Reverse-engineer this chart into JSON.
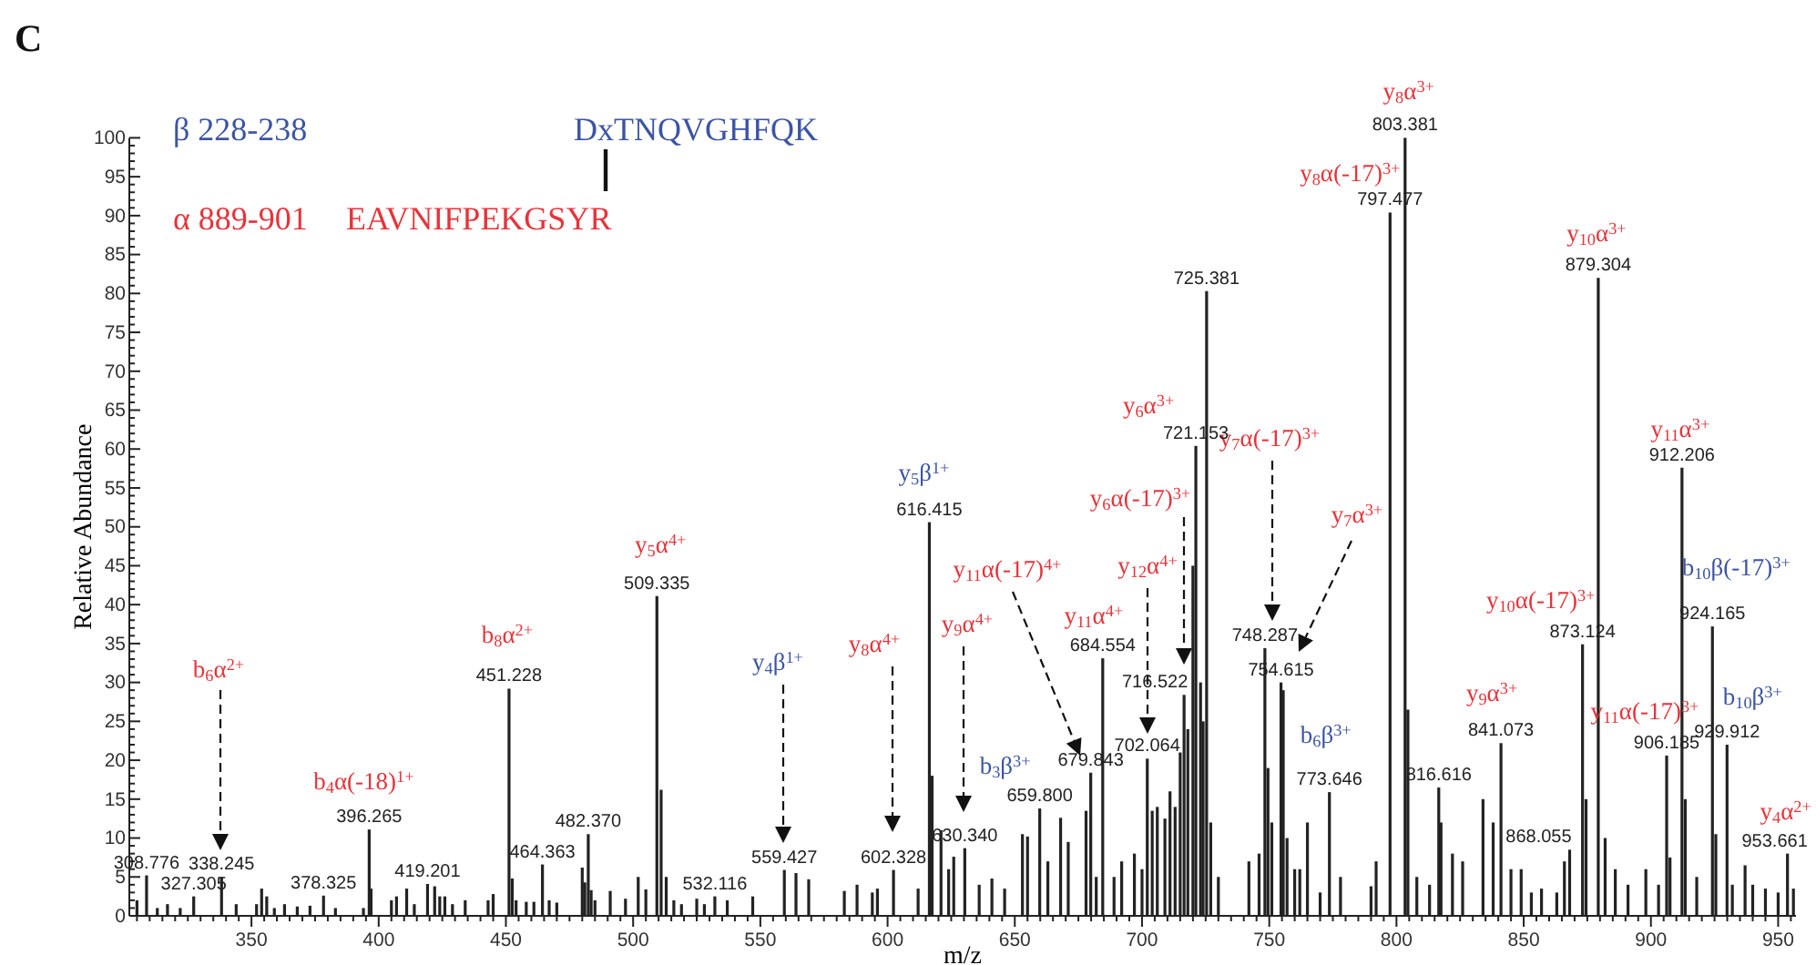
{
  "chart_data": {
    "type": "bar",
    "xlabel": "m/z",
    "ylabel": "Relative Abundance",
    "color": "#222222",
    "xlim": [
      302,
      957
    ],
    "ylim": [
      0,
      100
    ],
    "xticks": [
      {
        "value": 305,
        "label": null
      },
      {
        "value": 310,
        "label": null
      },
      {
        "value": 315,
        "label": null
      },
      {
        "value": 320,
        "label": null
      },
      {
        "value": 325,
        "label": null
      },
      {
        "value": 330,
        "label": null
      },
      {
        "value": 335,
        "label": null
      },
      {
        "value": 340,
        "label": null
      },
      {
        "value": 345,
        "label": null
      },
      350,
      {
        "value": 355,
        "label": null
      },
      {
        "value": 360,
        "label": null
      },
      {
        "value": 365,
        "label": null
      },
      {
        "value": 370,
        "label": null
      },
      {
        "value": 375,
        "label": null
      },
      {
        "value": 380,
        "label": null
      },
      {
        "value": 385,
        "label": null
      },
      {
        "value": 390,
        "label": null
      },
      {
        "value": 395,
        "label": null
      },
      400,
      {
        "value": 405,
        "label": null
      },
      {
        "value": 410,
        "label": null
      },
      {
        "value": 415,
        "label": null
      },
      {
        "value": 420,
        "label": null
      },
      {
        "value": 425,
        "label": null
      },
      {
        "value": 430,
        "label": null
      },
      {
        "value": 435,
        "label": null
      },
      {
        "value": 440,
        "label": null
      },
      {
        "value": 445,
        "label": null
      },
      450,
      {
        "value": 455,
        "label": null
      },
      {
        "value": 460,
        "label": null
      },
      {
        "value": 465,
        "label": null
      },
      {
        "value": 470,
        "label": null
      },
      {
        "value": 475,
        "label": null
      },
      {
        "value": 480,
        "label": null
      },
      {
        "value": 485,
        "label": null
      },
      {
        "value": 490,
        "label": null
      },
      {
        "value": 495,
        "label": null
      },
      500,
      {
        "value": 505,
        "label": null
      },
      {
        "value": 510,
        "label": null
      },
      {
        "value": 515,
        "label": null
      },
      {
        "value": 520,
        "label": null
      },
      {
        "value": 525,
        "label": null
      },
      {
        "value": 530,
        "label": null
      },
      {
        "value": 535,
        "label": null
      },
      {
        "value": 540,
        "label": null
      },
      {
        "value": 545,
        "label": null
      },
      550,
      {
        "value": 555,
        "label": null
      },
      {
        "value": 560,
        "label": null
      },
      {
        "value": 565,
        "label": null
      },
      {
        "value": 570,
        "label": null
      },
      {
        "value": 575,
        "label": null
      },
      {
        "value": 580,
        "label": null
      },
      {
        "value": 585,
        "label": null
      },
      {
        "value": 590,
        "label": null
      },
      {
        "value": 595,
        "label": null
      },
      600,
      {
        "value": 605,
        "label": null
      },
      {
        "value": 610,
        "label": null
      },
      {
        "value": 615,
        "label": null
      },
      {
        "value": 620,
        "label": null
      },
      {
        "value": 625,
        "label": null
      },
      {
        "value": 630,
        "label": null
      },
      {
        "value": 635,
        "label": null
      },
      {
        "value": 640,
        "label": null
      },
      {
        "value": 645,
        "label": null
      },
      650,
      {
        "value": 655,
        "label": null
      },
      {
        "value": 660,
        "label": null
      },
      {
        "value": 665,
        "label": null
      },
      {
        "value": 670,
        "label": null
      },
      {
        "value": 675,
        "label": null
      },
      {
        "value": 680,
        "label": null
      },
      {
        "value": 685,
        "label": null
      },
      {
        "value": 690,
        "label": null
      },
      {
        "value": 695,
        "label": null
      },
      700,
      {
        "value": 705,
        "label": null
      },
      {
        "value": 710,
        "label": null
      },
      {
        "value": 715,
        "label": null
      },
      {
        "value": 720,
        "label": null
      },
      {
        "value": 725,
        "label": null
      },
      {
        "value": 730,
        "label": null
      },
      {
        "value": 735,
        "label": null
      },
      {
        "value": 740,
        "label": null
      },
      {
        "value": 745,
        "label": null
      },
      750,
      {
        "value": 755,
        "label": null
      },
      {
        "value": 760,
        "label": null
      },
      {
        "value": 765,
        "label": null
      },
      {
        "value": 770,
        "label": null
      },
      {
        "value": 775,
        "label": null
      },
      {
        "value": 780,
        "label": null
      },
      {
        "value": 785,
        "label": null
      },
      {
        "value": 790,
        "label": null
      },
      {
        "value": 795,
        "label": null
      },
      800,
      {
        "value": 805,
        "label": null
      },
      {
        "value": 810,
        "label": null
      },
      {
        "value": 815,
        "label": null
      },
      {
        "value": 820,
        "label": null
      },
      {
        "value": 825,
        "label": null
      },
      {
        "value": 830,
        "label": null
      },
      {
        "value": 835,
        "label": null
      },
      {
        "value": 840,
        "label": null
      },
      {
        "value": 845,
        "label": null
      },
      850,
      {
        "value": 855,
        "label": null
      },
      {
        "value": 860,
        "label": null
      },
      {
        "value": 865,
        "label": null
      },
      {
        "value": 870,
        "label": null
      },
      {
        "value": 875,
        "label": null
      },
      {
        "value": 880,
        "label": null
      },
      {
        "value": 885,
        "label": null
      },
      {
        "value": 890,
        "label": null
      },
      {
        "value": 895,
        "label": null
      },
      900,
      {
        "value": 905,
        "label": null
      },
      {
        "value": 910,
        "label": null
      },
      {
        "value": 915,
        "label": null
      },
      {
        "value": 920,
        "label": null
      },
      {
        "value": 925,
        "label": null
      },
      {
        "value": 930,
        "label": null
      },
      {
        "value": 935,
        "label": null
      },
      {
        "value": 940,
        "label": null
      },
      {
        "value": 945,
        "label": null
      },
      950,
      {
        "value": 955,
        "label": null
      }
    ],
    "yticks": [
      0,
      {
        "value": 1,
        "label": null
      },
      {
        "value": 2,
        "label": null
      },
      {
        "value": 3,
        "label": null
      },
      {
        "value": 4,
        "label": null
      },
      5,
      {
        "value": 6,
        "label": null
      },
      {
        "value": 7,
        "label": null
      },
      {
        "value": 8,
        "label": null
      },
      {
        "value": 9,
        "label": null
      },
      10,
      {
        "value": 11,
        "label": null
      },
      {
        "value": 12,
        "label": null
      },
      {
        "value": 13,
        "label": null
      },
      {
        "value": 14,
        "label": null
      },
      15,
      {
        "value": 16,
        "label": null
      },
      {
        "value": 17,
        "label": null
      },
      {
        "value": 18,
        "label": null
      },
      {
        "value": 19,
        "label": null
      },
      20,
      {
        "value": 21,
        "label": null
      },
      {
        "value": 22,
        "label": null
      },
      {
        "value": 23,
        "label": null
      },
      {
        "value": 24,
        "label": null
      },
      25,
      {
        "value": 26,
        "label": null
      },
      {
        "value": 27,
        "label": null
      },
      {
        "value": 28,
        "label": null
      },
      {
        "value": 29,
        "label": null
      },
      30,
      {
        "value": 31,
        "label": null
      },
      {
        "value": 32,
        "label": null
      },
      {
        "value": 33,
        "label": null
      },
      {
        "value": 34,
        "label": null
      },
      35,
      {
        "value": 36,
        "label": null
      },
      {
        "value": 37,
        "label": null
      },
      {
        "value": 38,
        "label": null
      },
      {
        "value": 39,
        "label": null
      },
      40,
      {
        "value": 41,
        "label": null
      },
      {
        "value": 42,
        "label": null
      },
      {
        "value": 43,
        "label": null
      },
      {
        "value": 44,
        "label": null
      },
      45,
      {
        "value": 46,
        "label": null
      },
      {
        "value": 47,
        "label": null
      },
      {
        "value": 48,
        "label": null
      },
      {
        "value": 49,
        "label": null
      },
      50,
      {
        "value": 51,
        "label": null
      },
      {
        "value": 52,
        "label": null
      },
      {
        "value": 53,
        "label": null
      },
      {
        "value": 54,
        "label": null
      },
      55,
      {
        "value": 56,
        "label": null
      },
      {
        "value": 57,
        "label": null
      },
      {
        "value": 58,
        "label": null
      },
      {
        "value": 59,
        "label": null
      },
      60,
      {
        "value": 61,
        "label": null
      },
      {
        "value": 62,
        "label": null
      },
      {
        "value": 63,
        "label": null
      },
      {
        "value": 64,
        "label": null
      },
      65,
      {
        "value": 66,
        "label": null
      },
      {
        "value": 67,
        "label": null
      },
      {
        "value": 68,
        "label": null
      },
      {
        "value": 69,
        "label": null
      },
      70,
      {
        "value": 71,
        "label": null
      },
      {
        "value": 72,
        "label": null
      },
      {
        "value": 73,
        "label": null
      },
      {
        "value": 74,
        "label": null
      },
      75,
      {
        "value": 76,
        "label": null
      },
      {
        "value": 77,
        "label": null
      },
      {
        "value": 78,
        "label": null
      },
      {
        "value": 79,
        "label": null
      },
      80,
      {
        "value": 81,
        "label": null
      },
      {
        "value": 82,
        "label": null
      },
      {
        "value": 83,
        "label": null
      },
      {
        "value": 84,
        "label": null
      },
      85,
      {
        "value": 86,
        "label": null
      },
      {
        "value": 87,
        "label": null
      },
      {
        "value": 88,
        "label": null
      },
      {
        "value": 89,
        "label": null
      },
      90,
      {
        "value": 91,
        "label": null
      },
      {
        "value": 92,
        "label": null
      },
      {
        "value": 93,
        "label": null
      },
      {
        "value": 94,
        "label": null
      },
      95,
      {
        "value": 96,
        "label": null
      },
      {
        "value": 97,
        "label": null
      },
      {
        "value": 98,
        "label": null
      },
      {
        "value": 99,
        "label": null
      },
      100
    ],
    "x": [
      305,
      308.776,
      313,
      317,
      322,
      327.305,
      338.245,
      344,
      352,
      354,
      356,
      359,
      363,
      368,
      373,
      378.325,
      383,
      394,
      396.265,
      397,
      405,
      407,
      411,
      414,
      419.201,
      422,
      424,
      426,
      429,
      434,
      443,
      445,
      451.228,
      452.5,
      454,
      458,
      461,
      464.363,
      467,
      470,
      480,
      481,
      482.37,
      483.5,
      485,
      491,
      497,
      502,
      505,
      509.335,
      511,
      513,
      516,
      519,
      525,
      528,
      532.116,
      537,
      547,
      559.427,
      564,
      569,
      583,
      588,
      594,
      596,
      602.328,
      612,
      616.415,
      617.5,
      621,
      624,
      626,
      630.34,
      636,
      641,
      646,
      653,
      655,
      659.8,
      663,
      668,
      671,
      678,
      679.843,
      682,
      684.554,
      689,
      692,
      697,
      700,
      702.064,
      704,
      706,
      709,
      711,
      713,
      715,
      716.522,
      718,
      720,
      721.153,
      723,
      724,
      725.381,
      727,
      730,
      742,
      746,
      748.287,
      749.5,
      751,
      754.615,
      755.5,
      757,
      760,
      762,
      765,
      770,
      773.646,
      778,
      790,
      792,
      797.477,
      803.381,
      804.5,
      808,
      813,
      816.616,
      817.5,
      822,
      826,
      834,
      838,
      841.073,
      845,
      849,
      853,
      857,
      863,
      866,
      868.055,
      873.124,
      874.5,
      879.304,
      882,
      886,
      891,
      898,
      903,
      906.185,
      907.5,
      912.206,
      913.5,
      918,
      924.165,
      925.5,
      929.912,
      932,
      937,
      940,
      945,
      950,
      953.661,
      956
    ],
    "values": [
      2,
      5.2,
      1,
      1.5,
      1,
      2.5,
      5,
      1.5,
      1.5,
      3.5,
      2.5,
      1,
      1.5,
      1.2,
      1.3,
      2.6,
      1,
      1,
      11.1,
      3.5,
      2,
      2.5,
      3.5,
      1.5,
      4.1,
      3.8,
      2.5,
      2.5,
      1.5,
      2,
      2,
      2.8,
      29.2,
      4.8,
      2,
      1.8,
      1.8,
      6.6,
      2,
      1.7,
      6.2,
      4.3,
      10.5,
      3.3,
      2,
      3.2,
      2.2,
      5,
      3.4,
      41.1,
      16.2,
      5,
      2,
      1.5,
      2.2,
      1.5,
      2.5,
      2,
      2.5,
      5.9,
      5.5,
      4.7,
      3.2,
      4,
      3,
      3.5,
      5.9,
      3.5,
      50.6,
      18,
      11,
      6,
      7.6,
      8.7,
      4,
      4.8,
      3.5,
      10.5,
      10.2,
      13.8,
      7,
      12.6,
      9.5,
      13.5,
      18.4,
      5,
      33.1,
      5,
      7,
      8,
      6,
      20.2,
      13.5,
      14,
      12.5,
      16,
      14,
      21,
      28.4,
      24,
      45,
      60.4,
      30,
      25,
      80.3,
      12,
      5,
      7,
      8,
      34.4,
      19,
      12,
      30,
      29,
      10,
      6,
      6,
      12,
      3,
      15.9,
      5,
      3.8,
      7,
      90.4,
      100,
      26.5,
      5,
      4,
      16.5,
      12,
      8,
      7,
      15,
      12,
      22.2,
      6,
      6,
      3,
      3.5,
      3,
      7,
      8.5,
      34.9,
      15,
      82,
      10,
      6,
      4,
      6,
      4,
      20.6,
      7.5,
      57.6,
      15,
      5,
      37.2,
      10.5,
      22,
      4,
      6.5,
      4,
      3.5,
      3,
      8,
      3.5
    ],
    "annotations": [
      "C",
      "β 228-238",
      "DxTNQVGHFQK",
      "α 889-901",
      "EAVNIFPEKGSYR",
      "b$_{6}$α$^{2+}$",
      {
        "text": "b$_{4}$α(-18)$^{1+}$",
        "x": 396.265,
        "y": 11.1
      },
      {
        "text": "b$_{8}$α$^{2+}$",
        "x": 451.228,
        "y": 29.2
      },
      {
        "text": "y$_{5}$α$^{4+}$",
        "x": 509.335,
        "y": 41.1
      },
      "y$_{4}$β$^{1+}$",
      "y$_{8}$α$^{4+}$",
      "y$_{9}$α$^{4+}$",
      {
        "text": "y$_{5}$β$^{1+}$",
        "x": 616.415,
        "y": 50.6
      },
      {
        "text": "b$_{3}$β$^{3+}$",
        "x": 659.8,
        "y": 13.8
      },
      "y$_{11}$α(-17)$^{4+}$",
      {
        "text": "y$_{11}$α$^{4+}$",
        "x": 684.554,
        "y": 33.1
      },
      "y$_{12}$α$^{4+}$",
      "y$_{6}$α(-17)$^{3+}$",
      {
        "text": "y$_{6}$α$^{3+}$",
        "x": 721.153,
        "y": 60.4
      },
      "y$_{7}$α(-17)$^{3+}$",
      "y$_{7}$α$^{3+}$",
      {
        "text": "y$_{8}$α(-17)$^{3+}$",
        "x": 797.477,
        "y": 90.4
      },
      {
        "text": "y$_{8}$α$^{3+}$",
        "x": 803.381,
        "y": 100
      },
      {
        "text": "y$_{10}$α$^{3+}$",
        "x": 879.304,
        "y": 82
      },
      {
        "text": "y$_{11}$α$^{3+}$",
        "x": 912.206,
        "y": 57.6
      },
      {
        "text": "b$_{6}$β$^{3+}$",
        "x": 773.646,
        "y": 15.9
      },
      {
        "text": "y$_{9}$α$^{3+}$",
        "x": 841.073,
        "y": 22.2
      },
      {
        "text": "y$_{10}$α(-17)$^{3+}$",
        "x": 873.124,
        "y": 34.9
      },
      {
        "text": "y$_{11}$α(-17)$^{3+}$",
        "x": 906.185,
        "y": 20.6
      },
      {
        "text": "b$_{10}$β(-17)$^{3+}$",
        "x": 924.165,
        "y": 37.2
      },
      {
        "text": "b$_{10}$β$^{3+}$",
        "x": 929.912,
        "y": 22
      },
      {
        "text": "y$_{4}$α$^{2+}$",
        "x": 953.661,
        "y": 8
      },
      {
        "text": "308.776",
        "x": 308.776,
        "y": 5.2
      },
      {
        "text": "327.305",
        "x": 327.305,
        "y": 2.5
      },
      {
        "text": "338.245",
        "x": 338.245,
        "y": 5
      },
      {
        "text": "378.325",
        "x": 378.325,
        "y": 2.6
      },
      {
        "text": "396.265",
        "x": 396.265,
        "y": 11.1
      },
      {
        "text": "419.201",
        "x": 419.201,
        "y": 4.1
      },
      {
        "text": "451.228",
        "x": 451.228,
        "y": 29.2
      },
      {
        "text": "464.363",
        "x": 464.363,
        "y": 6.6
      },
      {
        "text": "482.370",
        "x": 482.37,
        "y": 10.5
      },
      {
        "text": "509.335",
        "x": 509.335,
        "y": 41.1
      },
      {
        "text": "532.116",
        "x": 532.116,
        "y": 2.5
      },
      {
        "text": "559.427",
        "x": 559.427,
        "y": 5.9
      },
      {
        "text": "602.328",
        "x": 602.328,
        "y": 5.9
      },
      {
        "text": "616.415",
        "x": 616.415,
        "y": 50.6
      },
      {
        "text": "630.340",
        "x": 630.34,
        "y": 8.7
      },
      {
        "text": "659.800",
        "x": 659.8,
        "y": 13.8
      },
      {
        "text": "679.843",
        "x": 679.843,
        "y": 18.4
      },
      {
        "text": "684.554",
        "x": 684.554,
        "y": 33.1
      },
      {
        "text": "702.064",
        "x": 702.064,
        "y": 20.2
      },
      {
        "text": "716.522",
        "x": 716.522,
        "y": 28.4
      },
      {
        "text": "721.153",
        "x": 721.153,
        "y": 60.4
      },
      {
        "text": "725.381",
        "x": 725.381,
        "y": 80.3
      },
      {
        "text": "748.287",
        "x": 748.287,
        "y": 34.4
      },
      {
        "text": "754.615",
        "x": 754.615,
        "y": 30
      },
      {
        "text": "773.646",
        "x": 773.646,
        "y": 15.9
      },
      {
        "text": "797.477",
        "x": 797.477,
        "y": 90.4
      },
      {
        "text": "803.381",
        "x": 803.381,
        "y": 100
      },
      {
        "text": "816.616",
        "x": 816.616,
        "y": 16.5
      },
      {
        "text": "841.073",
        "x": 841.073,
        "y": 22.2
      },
      {
        "text": "868.055",
        "x": 868.055,
        "y": 8.5
      },
      {
        "text": "873.124",
        "x": 873.124,
        "y": 34.9
      },
      {
        "text": "879.304",
        "x": 879.304,
        "y": 82
      },
      {
        "text": "906.185",
        "x": 906.185,
        "y": 20.6
      },
      {
        "text": "912.206",
        "x": 912.206,
        "y": 57.6
      },
      {
        "text": "924.165",
        "x": 924.165,
        "y": 37.2
      },
      {
        "text": "929.912",
        "x": 929.912,
        "y": 22
      },
      {
        "text": "953.661",
        "x": 953.661,
        "y": 8
      }
    ]
  }
}
